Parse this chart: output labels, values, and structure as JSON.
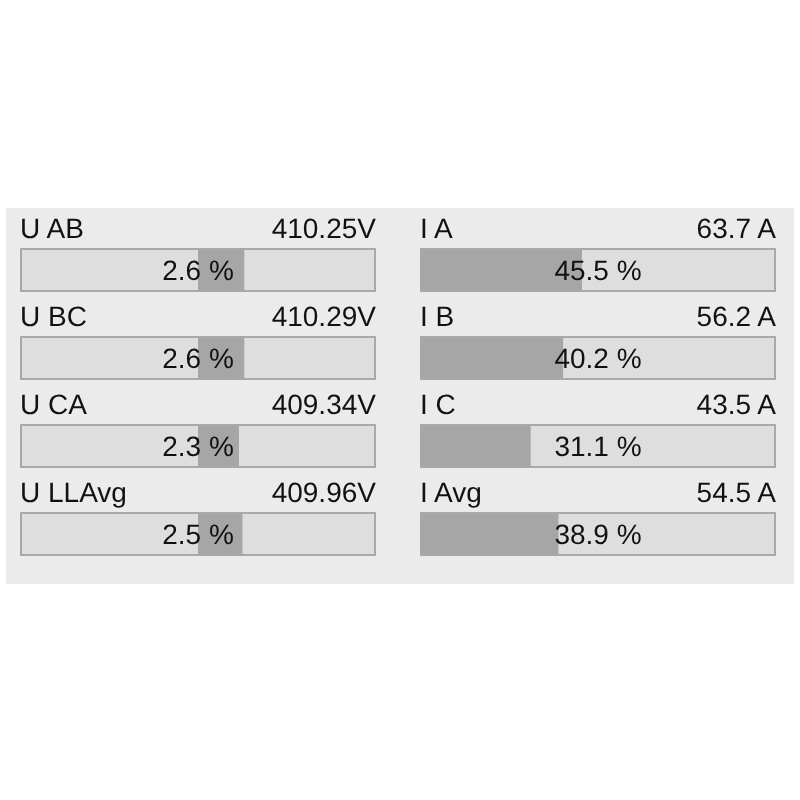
{
  "chart_data": [
    {
      "type": "bar",
      "orientation": "horizontal",
      "categories": [
        "U AB",
        "U BC",
        "U CA",
        "U LLAvg"
      ],
      "annotations": [
        "410.25V",
        "410.29V",
        "409.34V",
        "409.96V"
      ],
      "values": [
        2.6,
        2.6,
        2.3,
        2.5
      ],
      "value_labels": [
        "2.6 %",
        "2.6 %",
        "2.3 %",
        "2.5 %"
      ],
      "color": "#a6a6a6",
      "xlim": [
        -10,
        10
      ],
      "tick_labels": false
    },
    {
      "type": "bar",
      "orientation": "horizontal",
      "categories": [
        "I A",
        "I B",
        "I C",
        "I Avg"
      ],
      "annotations": [
        "63.7 A",
        "56.2 A",
        "43.5 A",
        "54.5 A"
      ],
      "values": [
        45.5,
        40.2,
        31.1,
        38.9
      ],
      "value_labels": [
        "45.5 %",
        "40.2 %",
        "31.1 %",
        "38.9 %"
      ],
      "color": "#a6a6a6",
      "xlim": [
        0,
        100
      ],
      "tick_labels": false
    }
  ]
}
